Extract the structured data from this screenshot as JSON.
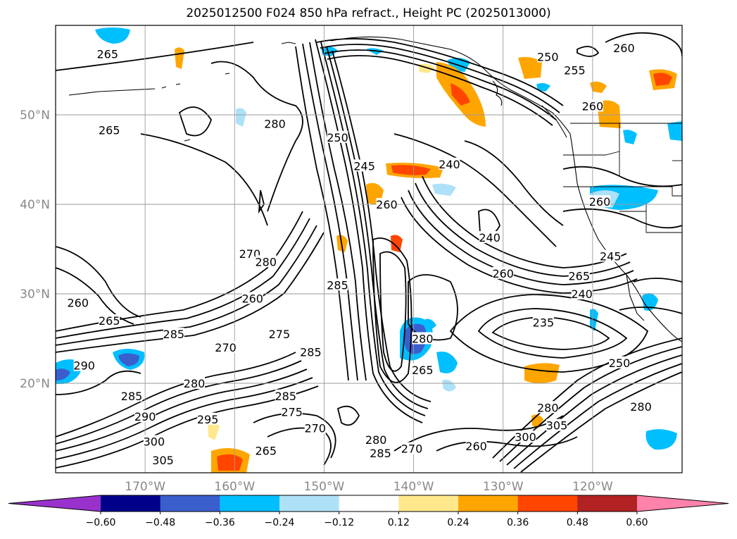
{
  "title": "2025012500 F024 850 hPa refract., Height PC (2025013000)",
  "map": {
    "lat_range": [
      10,
      60
    ],
    "lon_range": [
      -180,
      -110
    ],
    "lat_ticks": [
      {
        "value": 20,
        "label": "20°N"
      },
      {
        "value": 30,
        "label": "30°N"
      },
      {
        "value": 40,
        "label": "40°N"
      },
      {
        "value": 50,
        "label": "50°N"
      }
    ],
    "lon_ticks": [
      {
        "value": -170,
        "label": "170°W"
      },
      {
        "value": -160,
        "label": "160°W"
      },
      {
        "value": -150,
        "label": "150°W"
      },
      {
        "value": -140,
        "label": "140°W"
      },
      {
        "value": -130,
        "label": "130°W"
      },
      {
        "value": -120,
        "label": "120°W"
      }
    ],
    "contour_labels": [
      {
        "text": "265",
        "lon": -174.2,
        "lat": 56.8
      },
      {
        "text": "265",
        "lon": -174.0,
        "lat": 48.3
      },
      {
        "text": "280",
        "lon": -155.5,
        "lat": 49.0
      },
      {
        "text": "250",
        "lon": -148.5,
        "lat": 47.5
      },
      {
        "text": "245",
        "lon": -145.5,
        "lat": 44.3
      },
      {
        "text": "240",
        "lon": -136.0,
        "lat": 44.5
      },
      {
        "text": "260",
        "lon": -143.0,
        "lat": 40.0
      },
      {
        "text": "240",
        "lon": -131.5,
        "lat": 36.3
      },
      {
        "text": "260",
        "lon": -130.0,
        "lat": 32.3
      },
      {
        "text": "250",
        "lon": -125.0,
        "lat": 56.5
      },
      {
        "text": "255",
        "lon": -122.0,
        "lat": 55.0
      },
      {
        "text": "260",
        "lon": -116.5,
        "lat": 57.5
      },
      {
        "text": "260",
        "lon": -120.0,
        "lat": 51.0
      },
      {
        "text": "260",
        "lon": -119.2,
        "lat": 40.3
      },
      {
        "text": "245",
        "lon": -118.0,
        "lat": 34.2
      },
      {
        "text": "265",
        "lon": -121.5,
        "lat": 32.0
      },
      {
        "text": "240",
        "lon": -121.2,
        "lat": 30.0
      },
      {
        "text": "235",
        "lon": -125.5,
        "lat": 26.8
      },
      {
        "text": "270",
        "lon": -158.3,
        "lat": 34.5
      },
      {
        "text": "280",
        "lon": -156.5,
        "lat": 33.6
      },
      {
        "text": "285",
        "lon": -148.5,
        "lat": 31.0
      },
      {
        "text": "260",
        "lon": -158.0,
        "lat": 29.5
      },
      {
        "text": "275",
        "lon": -155.0,
        "lat": 25.5
      },
      {
        "text": "285",
        "lon": -151.5,
        "lat": 23.5
      },
      {
        "text": "260",
        "lon": -177.5,
        "lat": 29.0
      },
      {
        "text": "265",
        "lon": -174.0,
        "lat": 27.0
      },
      {
        "text": "285",
        "lon": -166.8,
        "lat": 25.5
      },
      {
        "text": "270",
        "lon": -161.0,
        "lat": 24.0
      },
      {
        "text": "290",
        "lon": -176.8,
        "lat": 22.0
      },
      {
        "text": "280",
        "lon": -164.5,
        "lat": 20.0
      },
      {
        "text": "285",
        "lon": -171.5,
        "lat": 18.6
      },
      {
        "text": "290",
        "lon": -170.0,
        "lat": 16.3
      },
      {
        "text": "295",
        "lon": -163.0,
        "lat": 16.0
      },
      {
        "text": "285",
        "lon": -154.3,
        "lat": 18.6
      },
      {
        "text": "275",
        "lon": -153.6,
        "lat": 16.8
      },
      {
        "text": "270",
        "lon": -151.0,
        "lat": 15.0
      },
      {
        "text": "300",
        "lon": -169.0,
        "lat": 13.5
      },
      {
        "text": "305",
        "lon": -168.0,
        "lat": 11.4
      },
      {
        "text": "265",
        "lon": -156.5,
        "lat": 12.5
      },
      {
        "text": "280",
        "lon": -144.2,
        "lat": 13.7
      },
      {
        "text": "285",
        "lon": -143.7,
        "lat": 12.2
      },
      {
        "text": "270",
        "lon": -140.2,
        "lat": 12.7
      },
      {
        "text": "260",
        "lon": -133.0,
        "lat": 13.0
      },
      {
        "text": "280",
        "lon": -139.0,
        "lat": 25.0
      },
      {
        "text": "265",
        "lon": -139.0,
        "lat": 21.5
      },
      {
        "text": "300",
        "lon": -127.5,
        "lat": 14.0
      },
      {
        "text": "305",
        "lon": -124.0,
        "lat": 15.3
      },
      {
        "text": "280",
        "lon": -125.0,
        "lat": 17.3
      },
      {
        "text": "280",
        "lon": -114.6,
        "lat": 17.4
      },
      {
        "text": "250",
        "lon": -117.0,
        "lat": 22.3
      }
    ]
  },
  "colorbar": {
    "levels": [
      -0.6,
      -0.48,
      -0.36,
      -0.24,
      -0.12,
      0.12,
      0.24,
      0.36,
      0.48,
      0.6
    ],
    "tick_labels": [
      "−0.60",
      "−0.48",
      "−0.36",
      "−0.24",
      "−0.12",
      "0.12",
      "0.24",
      "0.36",
      "0.48",
      "0.60"
    ],
    "colors": [
      "#9932CC",
      "#00008B",
      "#3A5FCD",
      "#00BFFF",
      "#ADE1F7",
      "#FFFFFF",
      "#FFE88C",
      "#FFA500",
      "#FF4500",
      "#B22222",
      "#FF82AB"
    ],
    "extend": "both"
  }
}
